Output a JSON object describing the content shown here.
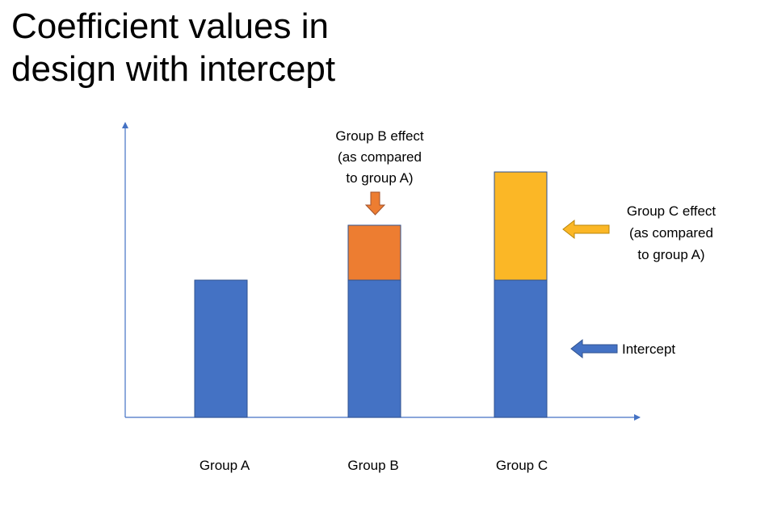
{
  "title": "Coefficient values in\ndesign with intercept",
  "colors": {
    "intercept": "#4472C4",
    "group_b_effect": "#ED7D31",
    "group_c_effect": "#FBB726",
    "axis": "#4472C4"
  },
  "groups": [
    {
      "label": "Group A",
      "intercept": 1.0,
      "effect": 0
    },
    {
      "label": "Group B",
      "intercept": 1.0,
      "effect": 0.4
    },
    {
      "label": "Group C",
      "intercept": 1.0,
      "effect": 0.8
    }
  ],
  "annotations": {
    "group_b_effect": [
      "Group B effect",
      "(as compared",
      "to group A)"
    ],
    "group_c_effect": [
      "Group C effect",
      "(as compared",
      "to group A)"
    ],
    "intercept": "Intercept"
  }
}
